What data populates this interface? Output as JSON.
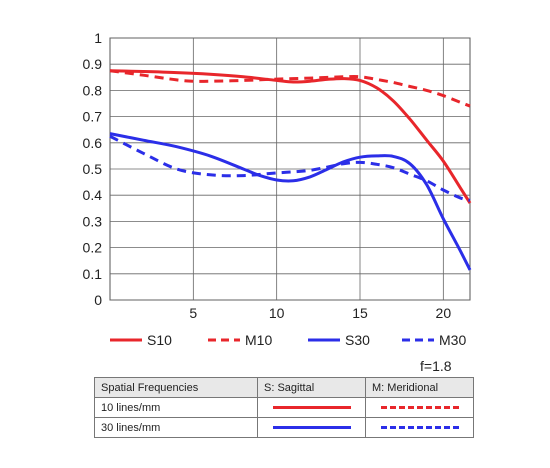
{
  "chart_data": {
    "type": "line",
    "title": "",
    "xlabel": "",
    "ylabel": "",
    "xlim": [
      0,
      21.6
    ],
    "ylim": [
      0,
      1
    ],
    "x_ticks": [
      5,
      10,
      15,
      20
    ],
    "y_ticks": [
      0,
      0.1,
      0.2,
      0.3,
      0.4,
      0.5,
      0.6,
      0.7,
      0.8,
      0.9,
      1
    ],
    "y_tick_labels": [
      "0",
      "0.1",
      "0.2",
      "0.3",
      "0.4",
      "0.5",
      "0.6",
      "0.7",
      "0.8",
      "0.9",
      "1"
    ],
    "grid": true,
    "legend_position": "bottom",
    "series": [
      {
        "name": "S10",
        "color": "#e8262b",
        "dash": "solid",
        "x": [
          0,
          2,
          4,
          6,
          8,
          10,
          11,
          12,
          13,
          14,
          15,
          16,
          17,
          18,
          19,
          20,
          21,
          21.6
        ],
        "y": [
          0.875,
          0.872,
          0.868,
          0.862,
          0.852,
          0.838,
          0.832,
          0.835,
          0.842,
          0.845,
          0.838,
          0.81,
          0.76,
          0.69,
          0.61,
          0.53,
          0.43,
          0.37
        ]
      },
      {
        "name": "M10",
        "color": "#e8262b",
        "dash": "dashed",
        "x": [
          0,
          2,
          4,
          5,
          6,
          8,
          10,
          12,
          14,
          15,
          16,
          17,
          18,
          19,
          20,
          21,
          21.6
        ],
        "y": [
          0.875,
          0.858,
          0.84,
          0.835,
          0.835,
          0.838,
          0.843,
          0.847,
          0.852,
          0.852,
          0.842,
          0.83,
          0.815,
          0.8,
          0.78,
          0.755,
          0.74
        ]
      },
      {
        "name": "S30",
        "color": "#2b2ee8",
        "dash": "solid",
        "x": [
          0,
          2,
          4,
          6,
          8,
          9,
          10,
          11,
          12,
          13,
          14,
          15,
          16,
          17,
          18,
          19,
          20,
          21,
          21.6
        ],
        "y": [
          0.635,
          0.61,
          0.585,
          0.55,
          0.5,
          0.475,
          0.458,
          0.455,
          0.47,
          0.498,
          0.527,
          0.545,
          0.55,
          0.548,
          0.52,
          0.44,
          0.31,
          0.19,
          0.115
        ]
      },
      {
        "name": "M30",
        "color": "#2b2ee8",
        "dash": "dashed",
        "x": [
          0,
          2,
          4,
          6,
          8,
          10,
          12,
          14,
          15,
          16,
          17,
          18,
          19,
          20,
          21,
          21.6
        ],
        "y": [
          0.625,
          0.56,
          0.5,
          0.478,
          0.475,
          0.485,
          0.495,
          0.52,
          0.525,
          0.518,
          0.505,
          0.48,
          0.455,
          0.42,
          0.39,
          0.38
        ]
      }
    ]
  },
  "aperture_note": "f=1.8",
  "legend_table": {
    "header": [
      "Spatial Frequencies",
      "S: Sagittal",
      "M: Meridional"
    ],
    "rows": [
      {
        "label": "10 lines/mm"
      },
      {
        "label": "30 lines/mm"
      }
    ]
  }
}
